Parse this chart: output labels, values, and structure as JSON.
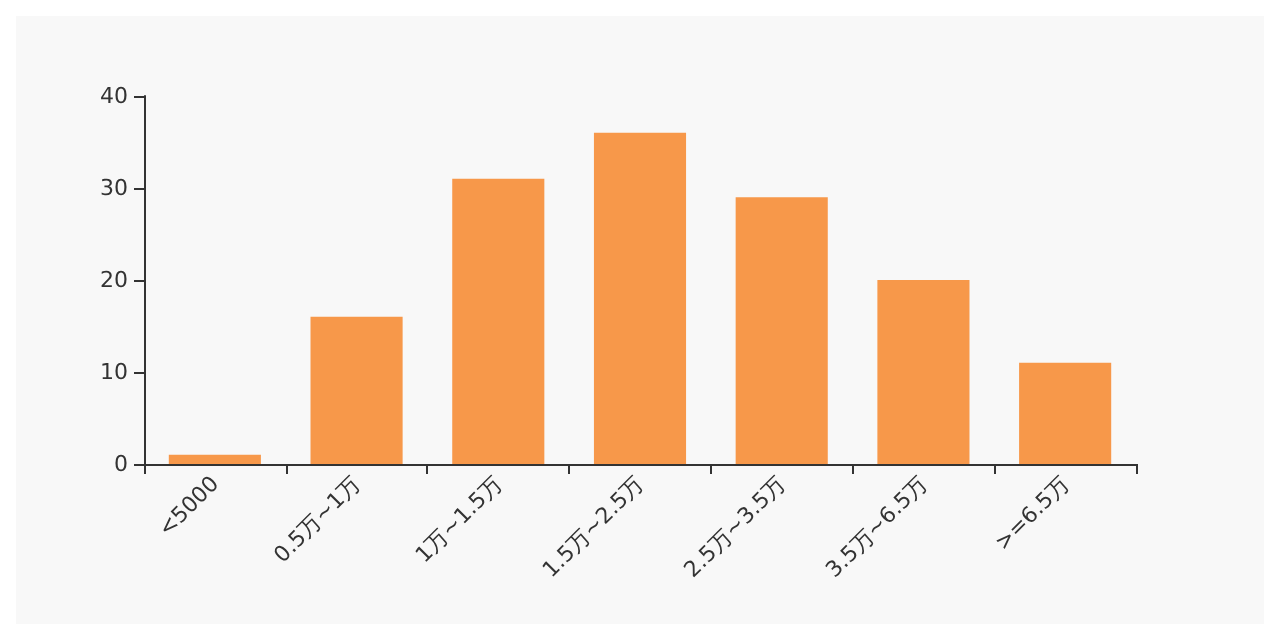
{
  "chart_data": {
    "type": "bar",
    "categories": [
      "<5000",
      "0.5万~1万",
      "1万~1.5万",
      "1.5万~2.5万",
      "2.5万~3.5万",
      "3.5万~6.5万",
      ">=6.5万"
    ],
    "values": [
      1,
      16,
      31,
      36,
      29,
      20,
      11
    ],
    "color": "#f7984a",
    "ylim": [
      0,
      40
    ],
    "yticks": [
      0,
      10,
      20,
      30,
      40
    ],
    "grid": false
  }
}
